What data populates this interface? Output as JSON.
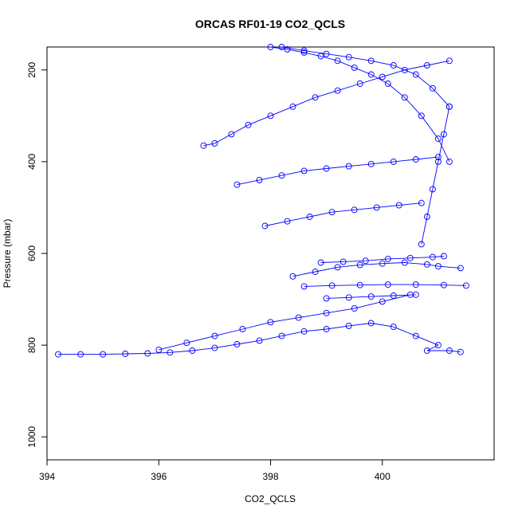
{
  "chart_data": {
    "type": "scatter",
    "title": "ORCAS RF01-19 CO2_QCLS",
    "xlabel": "CO2_QCLS",
    "ylabel": "Pressure (mbar)",
    "xlim": [
      394,
      402
    ],
    "ylim": [
      150,
      1050
    ],
    "y_reversed": true,
    "x_ticks": [
      394,
      396,
      398,
      400
    ],
    "y_ticks": [
      200,
      400,
      600,
      800,
      1000
    ],
    "grid": false,
    "legend": "none",
    "marker": "open-circle",
    "point_color": "#0000ff",
    "series": [
      {
        "x": [
          394.2,
          394.6,
          395.0,
          395.4,
          395.8,
          396.2,
          396.6,
          397.0,
          397.4,
          397.8,
          398.2,
          398.6,
          399.0,
          399.4,
          399.8,
          400.2,
          400.6,
          401.0,
          400.8,
          401.2,
          401.4
        ],
        "y": [
          820,
          820,
          820,
          819,
          818,
          816,
          812,
          806,
          798,
          790,
          780,
          770,
          765,
          758,
          752,
          760,
          780,
          800,
          812,
          812,
          815
        ]
      },
      {
        "x": [
          396.0,
          396.5,
          397.0,
          397.5,
          398.0,
          398.5,
          399.0,
          399.5,
          400.0,
          400.5
        ],
        "y": [
          810,
          795,
          780,
          765,
          750,
          740,
          730,
          720,
          705,
          690
        ]
      },
      {
        "x": [
          398.9,
          399.3,
          399.7,
          400.1,
          400.5,
          400.9,
          401.1
        ],
        "y": [
          620,
          618,
          616,
          612,
          610,
          608,
          606
        ]
      },
      {
        "x": [
          398.6,
          399.1,
          399.6,
          400.1,
          400.6,
          401.1,
          401.5
        ],
        "y": [
          672,
          670,
          669,
          668,
          668,
          669,
          670
        ]
      },
      {
        "x": [
          399.0,
          399.4,
          399.8,
          400.2,
          400.6
        ],
        "y": [
          698,
          696,
          694,
          692,
          690
        ]
      },
      {
        "x": [
          396.8,
          397.0,
          397.3,
          397.6,
          398.0,
          398.4,
          398.8,
          399.2,
          399.6,
          400.0,
          400.4,
          400.8,
          401.2
        ],
        "y": [
          365,
          360,
          340,
          320,
          300,
          280,
          260,
          245,
          230,
          215,
          200,
          190,
          180
        ]
      },
      {
        "x": [
          397.4,
          397.8,
          398.2,
          398.6,
          399.0,
          399.4,
          399.8,
          400.2,
          400.6,
          401.0
        ],
        "y": [
          450,
          440,
          430,
          420,
          415,
          410,
          405,
          400,
          395,
          390
        ]
      },
      {
        "x": [
          397.9,
          398.3,
          398.7,
          399.1,
          399.5,
          399.9,
          400.3,
          400.7
        ],
        "y": [
          540,
          530,
          520,
          510,
          505,
          500,
          495,
          490
        ]
      },
      {
        "x": [
          398.0,
          398.3,
          398.6,
          398.9,
          399.2,
          399.5,
          399.8,
          400.1,
          400.4,
          400.7,
          401.0,
          401.2
        ],
        "y": [
          150,
          155,
          162,
          170,
          180,
          195,
          210,
          230,
          260,
          300,
          350,
          400
        ]
      },
      {
        "x": [
          398.2,
          398.6,
          399.0,
          399.4,
          399.8,
          400.2,
          400.6,
          400.9,
          401.2
        ],
        "y": [
          150,
          158,
          165,
          172,
          180,
          190,
          210,
          240,
          280
        ]
      },
      {
        "x": [
          401.2,
          401.1,
          401.0,
          400.9,
          400.8,
          400.7
        ],
        "y": [
          280,
          340,
          400,
          460,
          520,
          580
        ]
      },
      {
        "x": [
          398.4,
          398.8,
          399.2,
          399.6,
          400.0,
          400.4,
          400.8,
          401.0,
          401.4
        ],
        "y": [
          650,
          640,
          630,
          625,
          622,
          620,
          624,
          628,
          632
        ]
      }
    ]
  }
}
